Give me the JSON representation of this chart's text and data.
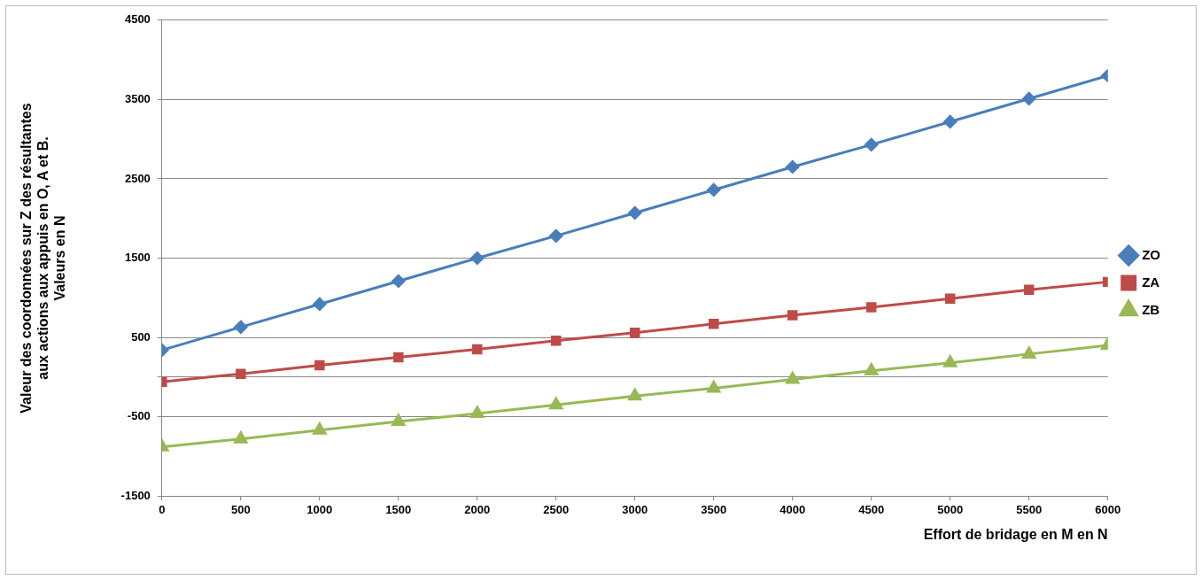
{
  "chart_data": {
    "type": "line",
    "xlabel": "Effort de bridage en M en N",
    "ylabel": "Valeur des coordonnées sur Z des résultantes aux actions aux appuis en O, A et B. Valeurs en N",
    "x": [
      0,
      500,
      1000,
      1500,
      2000,
      2500,
      3000,
      3500,
      4000,
      4500,
      5000,
      5500,
      6000
    ],
    "series": [
      {
        "name": "ZO",
        "color": "#4a7ebb",
        "marker": "diamond",
        "values": [
          340,
          630,
          920,
          1210,
          1500,
          1780,
          2070,
          2360,
          2650,
          2930,
          3220,
          3510,
          3800
        ]
      },
      {
        "name": "ZA",
        "color": "#be4b48",
        "marker": "square",
        "values": [
          -60,
          40,
          150,
          250,
          350,
          460,
          560,
          670,
          780,
          880,
          990,
          1100,
          1200
        ]
      },
      {
        "name": "ZB",
        "color": "#98b954",
        "marker": "triangle",
        "values": [
          -880,
          -780,
          -670,
          -560,
          -460,
          -350,
          -240,
          -140,
          -30,
          80,
          180,
          290,
          400
        ]
      }
    ],
    "xlim": [
      0,
      6000
    ],
    "xticks": [
      0,
      500,
      1000,
      1500,
      2000,
      2500,
      3000,
      3500,
      4000,
      4500,
      5000,
      5500,
      6000
    ],
    "ylim": [
      -1500,
      4500
    ],
    "yticks": [
      -1500,
      -500,
      {
        "value": 0,
        "label": null
      },
      500,
      1500,
      2500,
      3500,
      4500
    ],
    "grid": "y",
    "legend": "right",
    "line_style": "solid"
  }
}
